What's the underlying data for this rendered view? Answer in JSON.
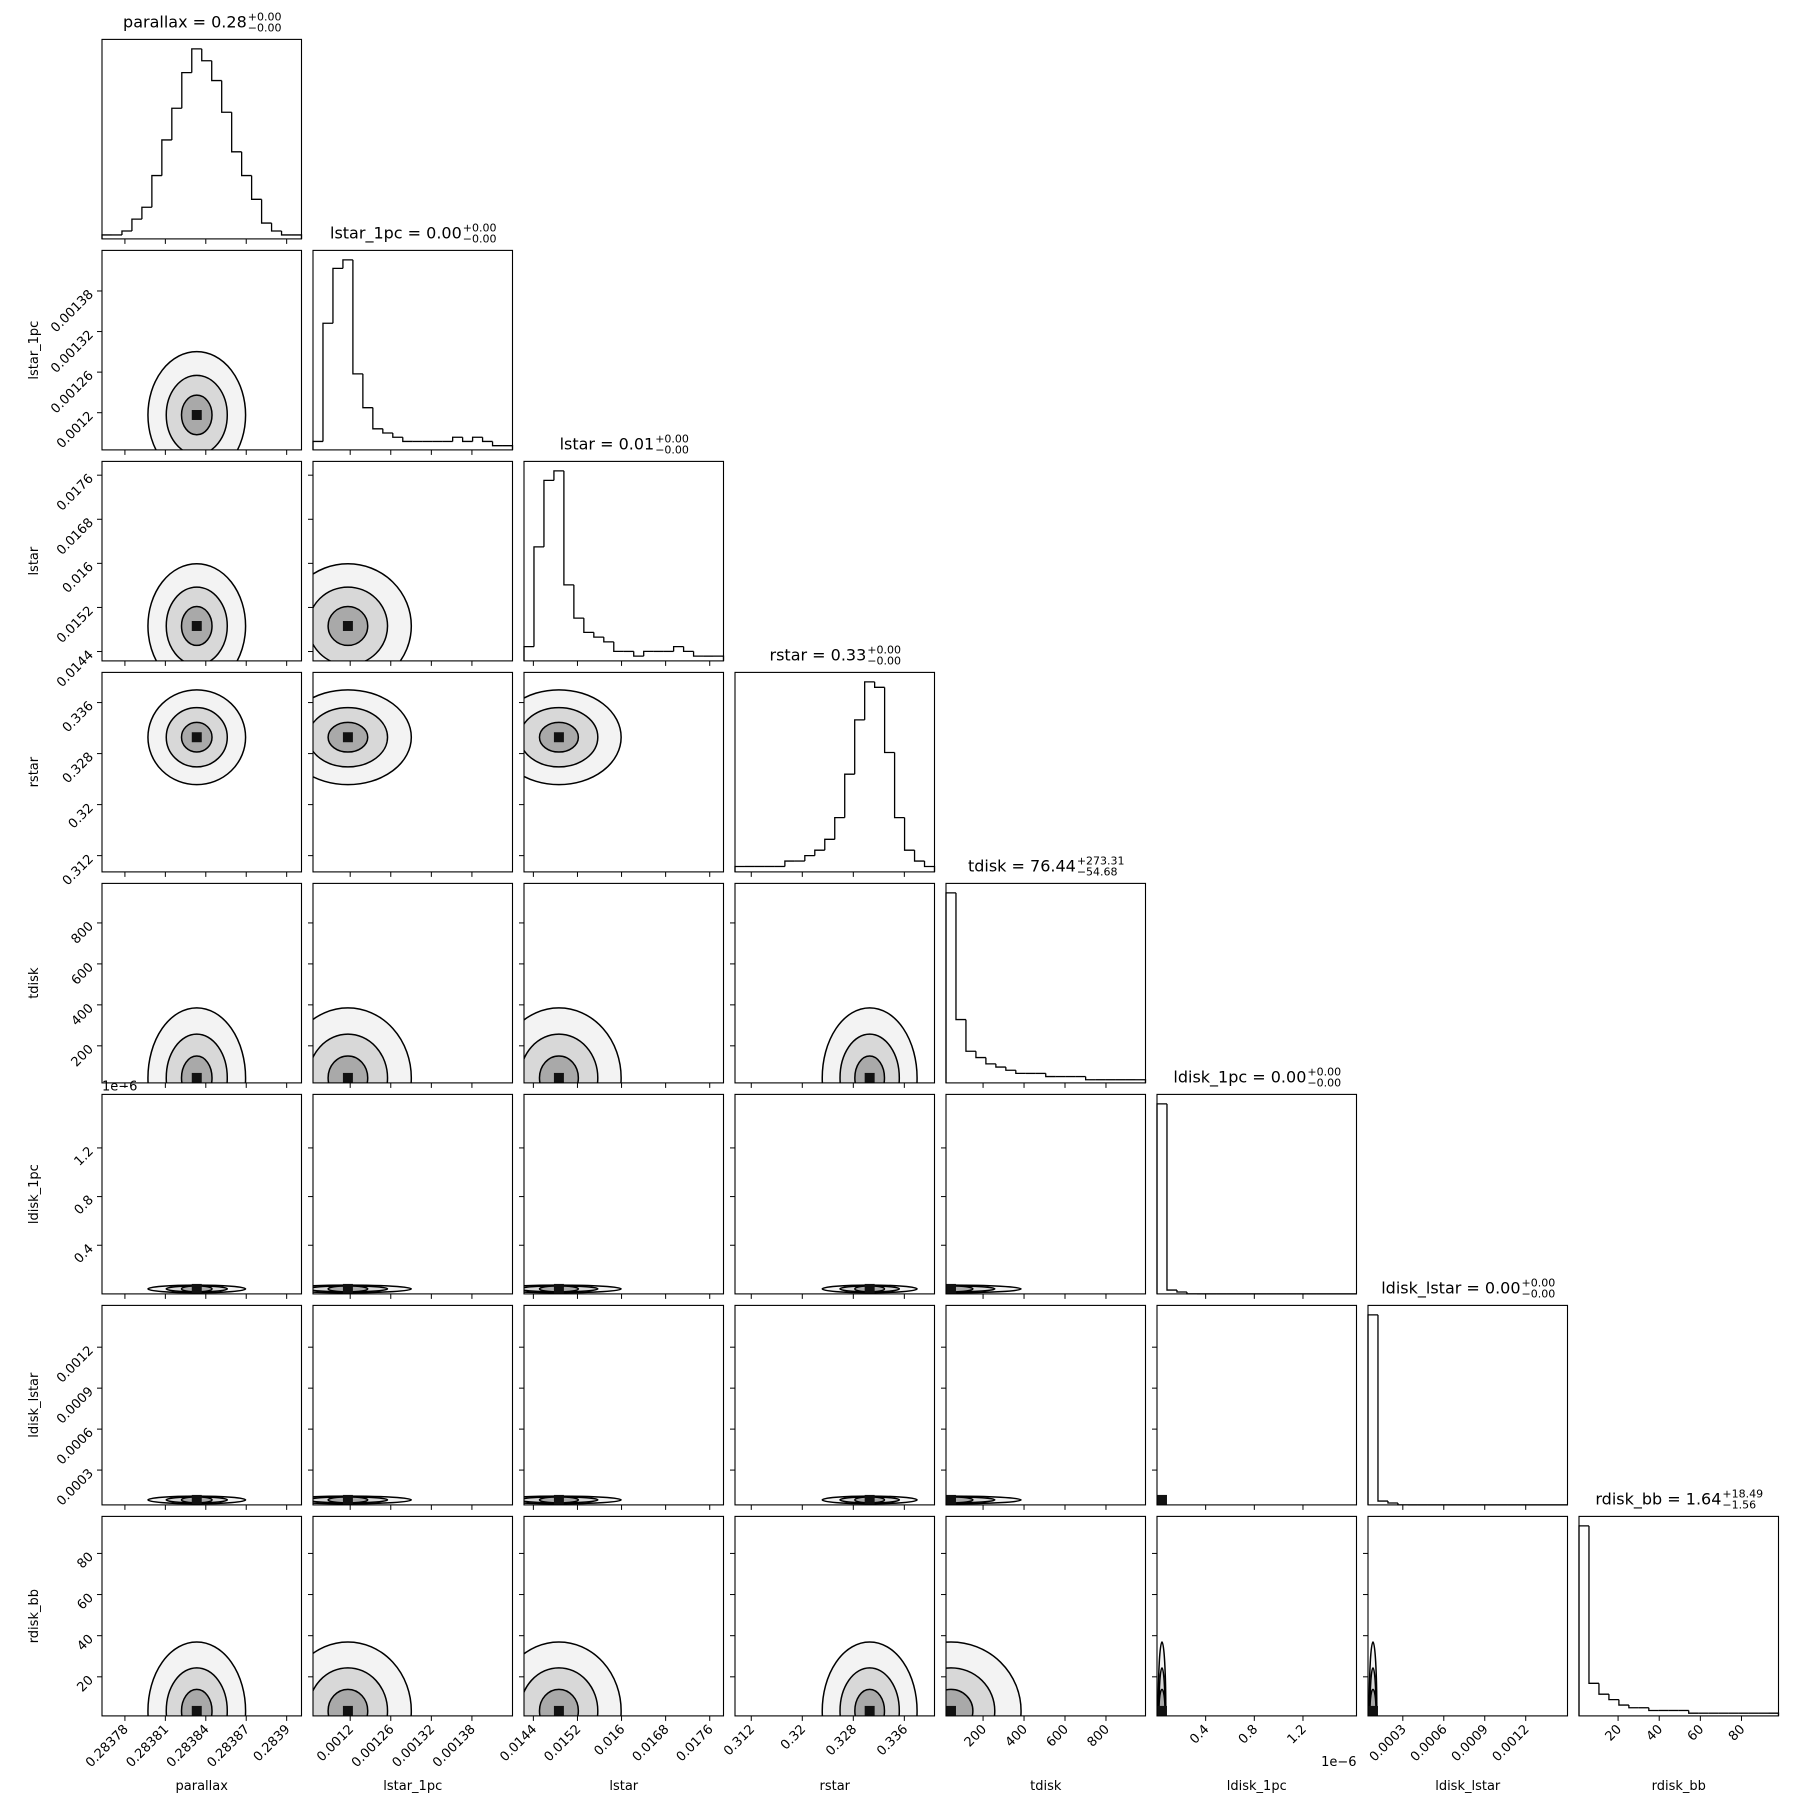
{
  "chart_data": {
    "type": "corner",
    "variables": [
      {
        "name": "parallax",
        "title": "parallax = 0.28",
        "plus": "+0.00",
        "minus": "−0.00",
        "lim": [
          0.283763,
          0.283911
        ],
        "ticks": [
          0.28378,
          0.28381,
          0.28384,
          0.28387,
          0.2839
        ],
        "counts": [
          1,
          1,
          2,
          5,
          8,
          16,
          25,
          33,
          42,
          48,
          45,
          40,
          32,
          22,
          16,
          10,
          4,
          2,
          1,
          1
        ]
      },
      {
        "name": "lstar_1pc",
        "title": "lstar_1pc = 0.00",
        "plus": "+0.00",
        "minus": "−0.00",
        "lim": [
          0.001145,
          0.00144
        ],
        "ticks": [
          0.0012,
          0.00126,
          0.00132,
          0.00138
        ],
        "counts": [
          2,
          30,
          43,
          45,
          18,
          10,
          5,
          4,
          3,
          2,
          2,
          2,
          2,
          2,
          3,
          2,
          3,
          2,
          1,
          1
        ]
      },
      {
        "name": "lstar",
        "title": "lstar = 0.01",
        "plus": "+0.00",
        "minus": "−0.00",
        "lim": [
          0.01423,
          0.01785
        ],
        "ticks": [
          0.0144,
          0.0152,
          0.016,
          0.0168,
          0.0176
        ],
        "counts": [
          3,
          24,
          38,
          40,
          16,
          9,
          6,
          5,
          4,
          2,
          2,
          1,
          2,
          2,
          2,
          3,
          2,
          1,
          1,
          1
        ]
      },
      {
        "name": "rstar",
        "title": "rstar = 0.33",
        "plus": "+0.00",
        "minus": "−0.00",
        "lim": [
          0.30945,
          0.34073
        ],
        "ticks": [
          0.312,
          0.32,
          0.328,
          0.336
        ],
        "counts": [
          1,
          1,
          1,
          1,
          1,
          2,
          2,
          3,
          4,
          6,
          10,
          18,
          28,
          35,
          34,
          22,
          10,
          4,
          2,
          1
        ]
      },
      {
        "name": "tdisk",
        "title": "tdisk = 76.44",
        "plus": "+273.31",
        "minus": "−54.68",
        "lim": [
          19,
          993
        ],
        "ticks": [
          200,
          400,
          600,
          800
        ],
        "counts": [
          60,
          20,
          10,
          8,
          6,
          5,
          4,
          3,
          3,
          3,
          2,
          2,
          2,
          2,
          1,
          1,
          1,
          1,
          1,
          1
        ]
      },
      {
        "name": "ldisk_1pc",
        "title": "ldisk_1pc = 0.00",
        "plus": "+0.00",
        "minus": "−0.00",
        "offset": "1e−6",
        "lim": [
          0,
          1.64e-06
        ],
        "ticks": [
          {
            "value": 4e-07,
            "label": "0.4"
          },
          {
            "value": 8e-07,
            "label": "0.8"
          },
          {
            "value": 1.2e-06,
            "label": "1.2"
          }
        ],
        "counts": [
          99,
          2,
          1,
          0,
          0,
          0,
          0,
          0,
          0,
          0,
          0,
          0,
          0,
          0,
          0,
          0,
          0,
          0,
          0,
          0
        ]
      },
      {
        "name": "ldisk_lstar",
        "title": "ldisk_lstar = 0.00",
        "plus": "+0.00",
        "minus": "−0.00",
        "lim": [
          4.5e-05,
          0.001506
        ],
        "ticks": [
          0.0003,
          0.0006,
          0.0009,
          0.0012
        ],
        "counts": [
          99,
          2,
          1,
          0,
          0,
          0,
          0,
          0,
          0,
          0,
          0,
          0,
          0,
          0,
          0,
          0,
          0,
          0,
          0,
          0
        ]
      },
      {
        "name": "rdisk_bb",
        "title": "rdisk_bb = 1.64",
        "plus": "+18.49",
        "minus": "−1.56",
        "lim": [
          1,
          98
        ],
        "ticks": [
          20,
          40,
          60,
          80
        ],
        "counts": [
          70,
          12,
          8,
          6,
          4,
          3,
          3,
          2,
          2,
          2,
          2,
          1,
          1,
          1,
          1,
          1,
          1,
          1,
          1,
          1
        ]
      }
    ]
  }
}
